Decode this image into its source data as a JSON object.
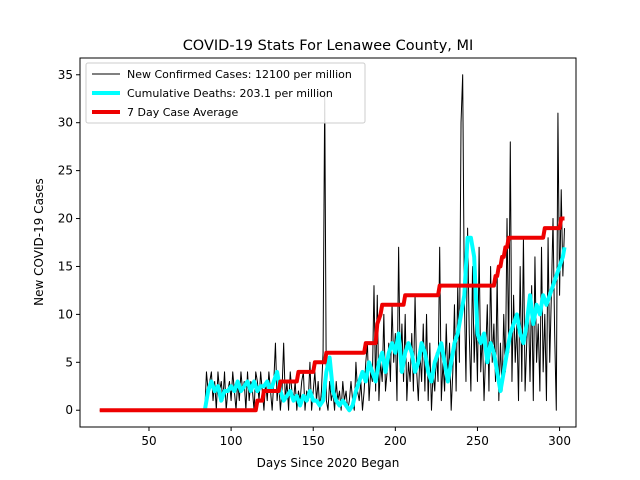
{
  "chart_data": {
    "type": "line",
    "title": "COVID-19 Stats For Lenawee County, MI",
    "xlabel": "Days Since 2020 Began",
    "ylabel": "New COVID-19 Cases",
    "xlim": [
      8,
      310
    ],
    "ylim": [
      -1.75,
      36.75
    ],
    "xticks": [
      50,
      100,
      150,
      200,
      250,
      300
    ],
    "yticks": [
      0,
      5,
      10,
      15,
      20,
      25,
      30,
      35
    ],
    "grid": false,
    "legend_position": "top-left",
    "series": [
      {
        "name": "New Confirmed Cases: 12100 per million",
        "color": "#000000",
        "line_width": 1,
        "x": [
          20,
          84,
          85,
          86,
          87,
          88,
          89,
          90,
          91,
          92,
          93,
          94,
          95,
          96,
          97,
          98,
          99,
          100,
          101,
          102,
          103,
          104,
          105,
          106,
          107,
          108,
          109,
          110,
          111,
          112,
          113,
          114,
          115,
          116,
          117,
          118,
          119,
          120,
          121,
          122,
          123,
          124,
          125,
          126,
          127,
          128,
          129,
          130,
          131,
          132,
          133,
          134,
          135,
          136,
          137,
          138,
          139,
          140,
          141,
          142,
          143,
          144,
          145,
          146,
          147,
          148,
          149,
          150,
          151,
          152,
          153,
          154,
          155,
          156,
          157,
          158,
          159,
          160,
          161,
          162,
          163,
          164,
          165,
          166,
          167,
          168,
          169,
          170,
          171,
          172,
          173,
          174,
          175,
          176,
          177,
          178,
          179,
          180,
          181,
          182,
          183,
          184,
          185,
          186,
          187,
          188,
          189,
          190,
          191,
          192,
          193,
          194,
          195,
          196,
          197,
          198,
          199,
          200,
          201,
          202,
          203,
          204,
          205,
          206,
          207,
          208,
          209,
          210,
          211,
          212,
          213,
          214,
          215,
          216,
          217,
          218,
          219,
          220,
          221,
          222,
          223,
          224,
          225,
          226,
          227,
          228,
          229,
          230,
          231,
          232,
          233,
          234,
          235,
          236,
          237,
          238,
          239,
          240,
          241,
          242,
          243,
          244,
          245,
          246,
          247,
          248,
          249,
          250,
          251,
          252,
          253,
          254,
          255,
          256,
          257,
          258,
          259,
          260,
          261,
          262,
          263,
          264,
          265,
          266,
          267,
          268,
          269,
          270,
          271,
          272,
          273,
          274,
          275,
          276,
          277,
          278,
          279,
          280,
          281,
          282,
          283,
          284,
          285,
          286,
          287,
          288,
          289,
          290,
          291,
          292,
          293,
          294,
          295,
          296,
          297,
          298,
          299,
          300,
          301,
          302,
          303
        ],
        "values": [
          0,
          0,
          4,
          2,
          3,
          4,
          1,
          3,
          0,
          4,
          2,
          3,
          1,
          4,
          0,
          2,
          3,
          1,
          4,
          2,
          0,
          3,
          1,
          4,
          2,
          3,
          0,
          4,
          1,
          3,
          2,
          0,
          4,
          3,
          1,
          4,
          2,
          0,
          3,
          1,
          4,
          2,
          0,
          3,
          7,
          1,
          3,
          0,
          2,
          7,
          1,
          3,
          0,
          4,
          2,
          1,
          3,
          0,
          2,
          1,
          3,
          4,
          0,
          2,
          1,
          5,
          0,
          2,
          4,
          1,
          3,
          0,
          2,
          6,
          33,
          1,
          0,
          3,
          1,
          2,
          0,
          3,
          1,
          2,
          0,
          3,
          1,
          2,
          0,
          1,
          3,
          1,
          0,
          5,
          2,
          1,
          3,
          0,
          2,
          5,
          7,
          1,
          4,
          3,
          13,
          2,
          12,
          1,
          5,
          3,
          10,
          2,
          4,
          7,
          3,
          11,
          5,
          8,
          1,
          17,
          4,
          9,
          3,
          10,
          1,
          5,
          3,
          8,
          2,
          12,
          4,
          1,
          6,
          3,
          9,
          2,
          10,
          1,
          7,
          0,
          4,
          2,
          6,
          3,
          17,
          1,
          5,
          2,
          9,
          3,
          7,
          0,
          4,
          11,
          2,
          13,
          5,
          30,
          35,
          12,
          3,
          19,
          8,
          2,
          15,
          5,
          10,
          3,
          17,
          4,
          8,
          1,
          6,
          11,
          2,
          15,
          5,
          9,
          3,
          14,
          1,
          7,
          2,
          10,
          4,
          20,
          6,
          28,
          3,
          12,
          5,
          9,
          1,
          15,
          3,
          18,
          2,
          7,
          11,
          3,
          13,
          1,
          16,
          5,
          9,
          2,
          17,
          4,
          10,
          1,
          18,
          5,
          12,
          20,
          8,
          0,
          31,
          12,
          23,
          14,
          19
        ],
        "note": "per-day counts"
      },
      {
        "name": "Cumulative Deaths: 203.1 per million",
        "color": "#00ffff",
        "line_width": 4,
        "x": [
          84,
          86,
          88,
          90,
          92,
          94,
          96,
          98,
          100,
          102,
          104,
          106,
          108,
          110,
          112,
          114,
          116,
          118,
          120,
          122,
          124,
          126,
          128,
          130,
          132,
          134,
          136,
          138,
          140,
          142,
          144,
          146,
          148,
          150,
          152,
          154,
          156,
          158,
          160,
          162,
          164,
          166,
          168,
          170,
          172,
          174,
          176,
          178,
          180,
          182,
          184,
          186,
          188,
          190,
          192,
          194,
          196,
          198,
          200,
          202,
          204,
          206,
          208,
          210,
          212,
          214,
          216,
          218,
          220,
          222,
          224,
          226,
          228,
          230,
          232,
          234,
          236,
          238,
          240,
          242,
          244,
          246,
          248,
          250,
          252,
          254,
          256,
          258,
          260,
          262,
          264,
          266,
          268,
          270,
          272,
          274,
          276,
          278,
          280,
          282,
          284,
          286,
          288,
          290,
          292,
          294,
          296,
          298,
          300,
          302,
          303
        ],
        "values": [
          0,
          2,
          3,
          2,
          2.5,
          1,
          2,
          2,
          2.5,
          2,
          3,
          2,
          2.5,
          3,
          2,
          3,
          2,
          2.5,
          2.5,
          3,
          2,
          3,
          4,
          2,
          1,
          1.5,
          2,
          1,
          1.5,
          0.5,
          1.5,
          1,
          2,
          1,
          1,
          0.5,
          1,
          4,
          5.5,
          2,
          1,
          0.5,
          1,
          0.5,
          0,
          0.5,
          2,
          3,
          4,
          3,
          5,
          4,
          3,
          5,
          6,
          4,
          6,
          7,
          6,
          8,
          4,
          6,
          7,
          6,
          4,
          5,
          7,
          6,
          4,
          3,
          5,
          6,
          7,
          5,
          3,
          5,
          7,
          8,
          10,
          12,
          18,
          18,
          16,
          8,
          7,
          8,
          5,
          7,
          6,
          4,
          2,
          4,
          6,
          8,
          9,
          10,
          8,
          7,
          9,
          12,
          9,
          11,
          10,
          12,
          11,
          12,
          13,
          14,
          15,
          16,
          17
        ],
        "note": "cumulative deaths (scaled)"
      },
      {
        "name": "7 Day Case Average",
        "color": "#ee0000",
        "line_width": 4,
        "x": [
          20,
          115,
          116,
          119,
          120,
          129,
          130,
          140,
          141,
          150,
          151,
          157,
          158,
          181,
          182,
          188,
          189,
          191,
          192,
          205,
          206,
          212,
          213,
          224,
          225,
          226,
          227,
          242,
          243,
          260,
          261,
          262,
          263,
          264,
          265,
          266,
          267,
          268,
          269,
          270,
          271,
          285,
          286,
          290,
          291,
          295,
          296,
          300,
          301,
          303
        ],
        "values": [
          0,
          0,
          1,
          1,
          2,
          2,
          3,
          3,
          4,
          4,
          5,
          5,
          6,
          6,
          7,
          7,
          9,
          10,
          11,
          11,
          12,
          12,
          12,
          12,
          12,
          12,
          13,
          13,
          13,
          13,
          14,
          14,
          15,
          15,
          16,
          16,
          17,
          17,
          18,
          18,
          18,
          18,
          18,
          18,
          19,
          19,
          19,
          19,
          20,
          20
        ]
      }
    ]
  }
}
